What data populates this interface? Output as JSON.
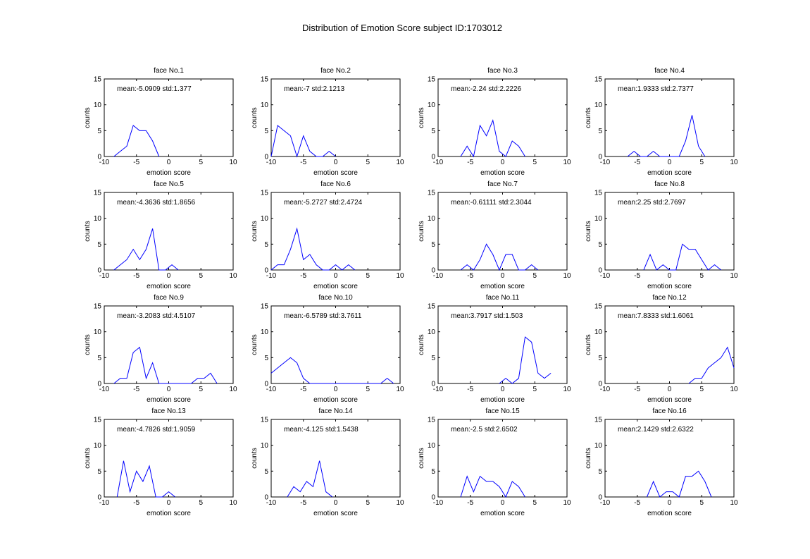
{
  "figure": {
    "title": "Distribution of Emotion Score  subject ID:1703012",
    "line_color": "#0000ff",
    "axis_color": "#000000",
    "background": "#ffffff"
  },
  "chart_data": [
    {
      "type": "line",
      "title": "face No.1",
      "annotation": "mean:-5.0909 std:1.377",
      "xlabel": "emotion score",
      "ylabel": "counts",
      "xlim": [
        -10,
        10
      ],
      "ylim": [
        0,
        15
      ],
      "xticks": [
        "-10",
        "-5",
        "0",
        "5",
        "10"
      ],
      "yticks": [
        "0",
        "5",
        "10",
        "15"
      ],
      "grid": false,
      "x": [
        -8.5,
        -7.5,
        -6.5,
        -5.5,
        -4.5,
        -3.5,
        -2.5,
        -1.5
      ],
      "y": [
        0,
        1,
        2,
        6,
        5,
        5,
        3,
        0
      ]
    },
    {
      "type": "line",
      "title": "face No.2",
      "annotation": "mean:-7 std:2.1213",
      "xlabel": "emotion score",
      "ylabel": "counts",
      "xlim": [
        -10,
        10
      ],
      "ylim": [
        0,
        15
      ],
      "xticks": [
        "-10",
        "-5",
        "0",
        "5",
        "10"
      ],
      "yticks": [
        "0",
        "5",
        "10",
        "15"
      ],
      "grid": false,
      "x": [
        -10,
        -9,
        -8,
        -7,
        -6,
        -5,
        -4,
        -3,
        -2,
        -1,
        0
      ],
      "y": [
        0,
        6,
        5,
        4,
        0,
        4,
        1,
        0,
        0,
        1,
        0
      ]
    },
    {
      "type": "line",
      "title": "face No.3",
      "annotation": "mean:-2.24 std:2.2226",
      "xlabel": "emotion score",
      "ylabel": "counts",
      "xlim": [
        -10,
        10
      ],
      "ylim": [
        0,
        15
      ],
      "xticks": [
        "-10",
        "-5",
        "0",
        "5",
        "10"
      ],
      "yticks": [
        "0",
        "5",
        "10",
        "15"
      ],
      "grid": false,
      "x": [
        -6.5,
        -5.5,
        -4.5,
        -3.5,
        -2.5,
        -1.5,
        -0.5,
        0.5,
        1.5,
        2.5,
        3.5
      ],
      "y": [
        0,
        2,
        0,
        6,
        4,
        7,
        1,
        0,
        3,
        2,
        0
      ]
    },
    {
      "type": "line",
      "title": "face No.4",
      "annotation": "mean:1.9333 std:2.7377",
      "xlabel": "emotion score",
      "ylabel": "counts",
      "xlim": [
        -10,
        10
      ],
      "ylim": [
        0,
        15
      ],
      "xticks": [
        "-10",
        "-5",
        "0",
        "5",
        "10"
      ],
      "yticks": [
        "0",
        "5",
        "10",
        "15"
      ],
      "grid": false,
      "x": [
        -6.5,
        -5.5,
        -4.5,
        -3.5,
        -2.5,
        -1.5,
        -0.5,
        0.5,
        1.5,
        2.5,
        3.5,
        4.5,
        5.5
      ],
      "y": [
        0,
        1,
        0,
        0,
        1,
        0,
        0,
        0,
        0,
        3,
        8,
        2,
        0
      ]
    },
    {
      "type": "line",
      "title": "face No.5",
      "annotation": "mean:-4.3636 std:1.8656",
      "xlabel": "emotion score",
      "ylabel": "counts",
      "xlim": [
        -10,
        10
      ],
      "ylim": [
        0,
        15
      ],
      "xticks": [
        "-10",
        "-5",
        "0",
        "5",
        "10"
      ],
      "yticks": [
        "0",
        "5",
        "10",
        "15"
      ],
      "grid": false,
      "x": [
        -8.5,
        -7.5,
        -6.5,
        -5.5,
        -4.5,
        -3.5,
        -2.5,
        -1.5,
        -0.5,
        0.5,
        1.5
      ],
      "y": [
        0,
        1,
        2,
        4,
        2,
        4,
        8,
        0,
        0,
        1,
        0
      ]
    },
    {
      "type": "line",
      "title": "face No.6",
      "annotation": "mean:-5.2727 std:2.4724",
      "xlabel": "emotion score",
      "ylabel": "counts",
      "xlim": [
        -10,
        10
      ],
      "ylim": [
        0,
        15
      ],
      "xticks": [
        "-10",
        "-5",
        "0",
        "5",
        "10"
      ],
      "yticks": [
        "0",
        "5",
        "10",
        "15"
      ],
      "grid": false,
      "x": [
        -10,
        -9,
        -8,
        -7,
        -6,
        -5,
        -4,
        -3,
        -2,
        -1,
        0,
        1,
        2,
        3
      ],
      "y": [
        0,
        1,
        1,
        4,
        8,
        2,
        3,
        1,
        0,
        0,
        1,
        0,
        1,
        0
      ]
    },
    {
      "type": "line",
      "title": "face No.7",
      "annotation": "mean:-0.61111 std:2.3044",
      "xlabel": "emotion score",
      "ylabel": "counts",
      "xlim": [
        -10,
        10
      ],
      "ylim": [
        0,
        15
      ],
      "xticks": [
        "-10",
        "-5",
        "0",
        "5",
        "10"
      ],
      "yticks": [
        "0",
        "5",
        "10",
        "15"
      ],
      "grid": false,
      "x": [
        -6.5,
        -5.5,
        -4.5,
        -3.5,
        -2.5,
        -1.5,
        -0.5,
        0.5,
        1.5,
        2.5,
        3.5,
        4.5,
        5.5
      ],
      "y": [
        0,
        1,
        0,
        2,
        5,
        3,
        0,
        3,
        3,
        0,
        0,
        1,
        0
      ]
    },
    {
      "type": "line",
      "title": "face No.8",
      "annotation": "mean:2.25 std:2.7697",
      "xlabel": "emotion score",
      "ylabel": "counts",
      "xlim": [
        -10,
        10
      ],
      "ylim": [
        0,
        15
      ],
      "xticks": [
        "-10",
        "-5",
        "0",
        "5",
        "10"
      ],
      "yticks": [
        "0",
        "5",
        "10",
        "15"
      ],
      "grid": false,
      "x": [
        -4,
        -3,
        -2,
        -1,
        0,
        1,
        2,
        3,
        4,
        5,
        6,
        7,
        8
      ],
      "y": [
        0,
        3,
        0,
        1,
        0,
        0,
        5,
        4,
        4,
        2,
        0,
        1,
        0
      ]
    },
    {
      "type": "line",
      "title": "face No.9",
      "annotation": "mean:-3.2083 std:4.5107",
      "xlabel": "emotion score",
      "ylabel": "counts",
      "xlim": [
        -10,
        10
      ],
      "ylim": [
        0,
        15
      ],
      "xticks": [
        "-10",
        "-5",
        "0",
        "5",
        "10"
      ],
      "yticks": [
        "0",
        "5",
        "10",
        "15"
      ],
      "grid": false,
      "x": [
        -8.5,
        -7.5,
        -6.5,
        -5.5,
        -4.5,
        -3.5,
        -2.5,
        -1.5,
        -0.5,
        0.5,
        1.5,
        2.5,
        3.5,
        4.5,
        5.5,
        6.5,
        7.5
      ],
      "y": [
        0,
        1,
        1,
        6,
        7,
        1,
        4,
        0,
        0,
        0,
        0,
        0,
        0,
        1,
        1,
        2,
        0
      ]
    },
    {
      "type": "line",
      "title": "face No.10",
      "annotation": "mean:-6.5789 std:3.7611",
      "xlabel": "emotion score",
      "ylabel": "counts",
      "xlim": [
        -10,
        10
      ],
      "ylim": [
        0,
        15
      ],
      "xticks": [
        "-10",
        "-5",
        "0",
        "5",
        "10"
      ],
      "yticks": [
        "0",
        "5",
        "10",
        "15"
      ],
      "grid": false,
      "x": [
        -10,
        -9,
        -8,
        -7,
        -6,
        -5,
        -4,
        -3,
        -2,
        -1,
        0,
        1,
        2,
        3,
        4,
        5,
        6,
        7,
        8,
        9
      ],
      "y": [
        2,
        3,
        4,
        5,
        4,
        1,
        0,
        0,
        0,
        0,
        0,
        0,
        0,
        0,
        0,
        0,
        0,
        0,
        1,
        0
      ]
    },
    {
      "type": "line",
      "title": "face No.11",
      "annotation": "mean:3.7917 std:1.503",
      "xlabel": "emotion score",
      "ylabel": "counts",
      "xlim": [
        -10,
        10
      ],
      "ylim": [
        0,
        15
      ],
      "xticks": [
        "-10",
        "-5",
        "0",
        "5",
        "10"
      ],
      "yticks": [
        "0",
        "5",
        "10",
        "15"
      ],
      "grid": false,
      "x": [
        -0.5,
        0.5,
        1.5,
        2.5,
        3.5,
        4.5,
        5.5,
        6.5,
        7.5
      ],
      "y": [
        0,
        1,
        0,
        1,
        9,
        8,
        2,
        1,
        2
      ]
    },
    {
      "type": "line",
      "title": "face No.12",
      "annotation": "mean:7.8333 std:1.6061",
      "xlabel": "emotion score",
      "ylabel": "counts",
      "xlim": [
        -10,
        10
      ],
      "ylim": [
        0,
        15
      ],
      "xticks": [
        "-10",
        "-5",
        "0",
        "5",
        "10"
      ],
      "yticks": [
        "0",
        "5",
        "10",
        "15"
      ],
      "grid": false,
      "x": [
        3,
        4,
        5,
        6,
        7,
        8,
        9,
        10
      ],
      "y": [
        0,
        1,
        1,
        3,
        4,
        5,
        7,
        3
      ]
    },
    {
      "type": "line",
      "title": "face No.13",
      "annotation": "mean:-4.7826 std:1.9059",
      "xlabel": "emotion score",
      "ylabel": "counts",
      "xlim": [
        -10,
        10
      ],
      "ylim": [
        0,
        15
      ],
      "xticks": [
        "-10",
        "-5",
        "0",
        "5",
        "10"
      ],
      "yticks": [
        "0",
        "5",
        "10",
        "15"
      ],
      "grid": false,
      "x": [
        -8,
        -7,
        -6,
        -5,
        -4,
        -3,
        -2,
        -1,
        0,
        1
      ],
      "y": [
        0,
        7,
        1,
        5,
        3,
        6,
        0,
        0,
        1,
        0
      ]
    },
    {
      "type": "line",
      "title": "face No.14",
      "annotation": "mean:-4.125 std:1.5438",
      "xlabel": "emotion score",
      "ylabel": "counts",
      "xlim": [
        -10,
        10
      ],
      "ylim": [
        0,
        15
      ],
      "xticks": [
        "-10",
        "-5",
        "0",
        "5",
        "10"
      ],
      "yticks": [
        "0",
        "5",
        "10",
        "15"
      ],
      "grid": false,
      "x": [
        -7.5,
        -6.5,
        -5.5,
        -4.5,
        -3.5,
        -2.5,
        -1.5,
        -0.5
      ],
      "y": [
        0,
        2,
        1,
        3,
        2,
        7,
        1,
        0
      ]
    },
    {
      "type": "line",
      "title": "face No.15",
      "annotation": "mean:-2.5 std:2.6502",
      "xlabel": "emotion score",
      "ylabel": "counts",
      "xlim": [
        -10,
        10
      ],
      "ylim": [
        0,
        15
      ],
      "xticks": [
        "-10",
        "-5",
        "0",
        "5",
        "10"
      ],
      "yticks": [
        "0",
        "5",
        "10",
        "15"
      ],
      "grid": false,
      "x": [
        -6.5,
        -5.5,
        -4.5,
        -3.5,
        -2.5,
        -1.5,
        -0.5,
        0.5,
        1.5,
        2.5,
        3.5
      ],
      "y": [
        0,
        4,
        1,
        4,
        3,
        3,
        2,
        0,
        3,
        2,
        0
      ]
    },
    {
      "type": "line",
      "title": "face No.16",
      "annotation": "mean:2.1429 std:2.6322",
      "xlabel": "emotion score",
      "ylabel": "counts",
      "xlim": [
        -10,
        10
      ],
      "ylim": [
        0,
        15
      ],
      "xticks": [
        "-10",
        "-5",
        "0",
        "5",
        "10"
      ],
      "yticks": [
        "0",
        "5",
        "10",
        "15"
      ],
      "grid": false,
      "x": [
        -3.5,
        -2.5,
        -1.5,
        -0.5,
        0.5,
        1.5,
        2.5,
        3.5,
        4.5,
        5.5,
        6.5
      ],
      "y": [
        0,
        3,
        0,
        1,
        1,
        0,
        4,
        4,
        5,
        3,
        0
      ]
    }
  ]
}
